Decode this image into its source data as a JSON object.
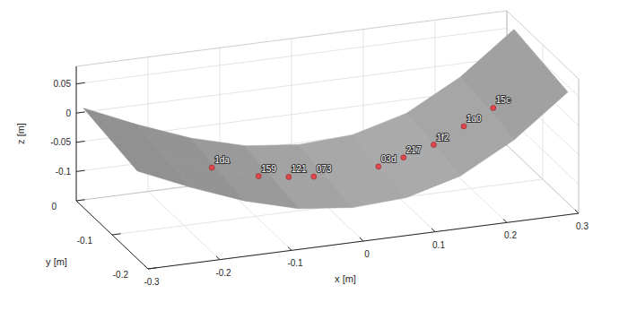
{
  "chart_data": {
    "type": "surface3d",
    "xlabel": "x [m]",
    "ylabel": "y [m]",
    "zlabel": "z [m]",
    "xlim": [
      -0.3,
      0.3
    ],
    "ylim": [
      -0.2,
      0
    ],
    "zlim": [
      -0.15,
      0.08
    ],
    "xticks": [
      -0.3,
      -0.2,
      -0.1,
      0,
      0.1,
      0.2,
      0.3
    ],
    "yticks": [
      -0.2,
      -0.1,
      0
    ],
    "zticks": [
      -0.1,
      -0.05,
      0,
      0.05
    ],
    "grid": true,
    "surface": {
      "color": "#8c8c8c",
      "x": [
        -0.3,
        -0.225,
        -0.15,
        -0.075,
        0,
        0.075,
        0.15,
        0.225,
        0.3
      ],
      "y": [
        -0.17,
        -0.095,
        -0.02
      ],
      "z": [
        [
          0.0,
          -0.04,
          -0.075,
          -0.1,
          -0.11,
          -0.105,
          -0.08,
          -0.03,
          0.04
        ],
        [
          0.01,
          -0.03,
          -0.065,
          -0.09,
          -0.1,
          -0.095,
          -0.07,
          -0.02,
          0.05
        ],
        [
          0.02,
          -0.02,
          -0.055,
          -0.08,
          -0.09,
          -0.085,
          -0.06,
          -0.01,
          0.06
        ]
      ]
    },
    "points": {
      "color": "#e0464b",
      "labels": [
        "1da",
        "159",
        "121",
        "073",
        "03d",
        "217",
        "1f2",
        "1a0",
        "15c"
      ],
      "x": [
        -0.161,
        -0.096,
        -0.054,
        -0.019,
        0.071,
        0.106,
        0.148,
        0.19,
        0.231
      ],
      "y": [
        -0.1,
        -0.1,
        -0.1,
        -0.1,
        -0.1,
        -0.1,
        -0.1,
        -0.1,
        -0.1
      ],
      "z": [
        -0.057,
        -0.082,
        -0.09,
        -0.095,
        -0.092,
        -0.082,
        -0.067,
        -0.042,
        -0.017
      ]
    }
  }
}
